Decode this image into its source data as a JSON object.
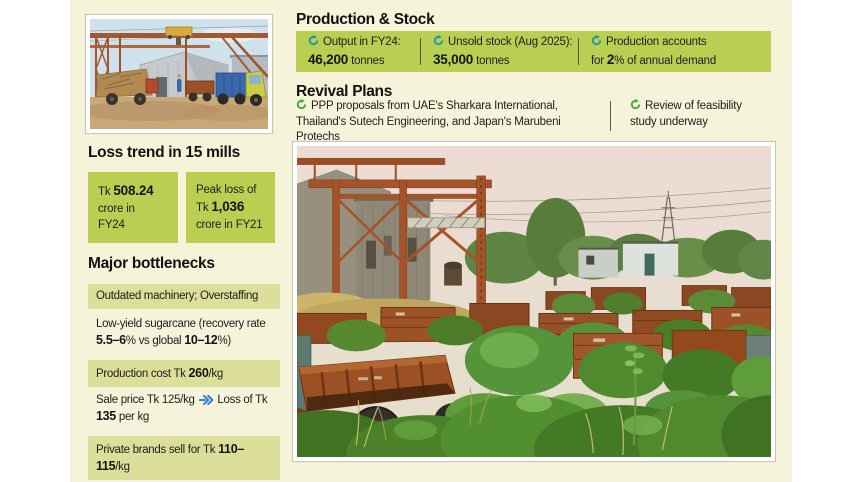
{
  "colors": {
    "panel_bg": "#f5f3da",
    "green_strong": "#b9cf52",
    "green_light": "#dcdf99",
    "icon_teal": "#2196a7",
    "icon_green": "#4aa53c",
    "arrow_blue": "#2e7fd8",
    "text": "#20201e"
  },
  "photos": {
    "mill_alt": "Sugar mill yard with steel gantry and cane trucks",
    "wagons_alt": "Abandoned rusted wagons overgrown with vines at closed sugar mill"
  },
  "production_stock": {
    "title": "Production & Stock",
    "stats": [
      {
        "icon": "cycle-arrow-icon",
        "label": "Output in FY24:",
        "value": "46,200",
        "unit": " tonnes"
      },
      {
        "icon": "cycle-arrow-icon",
        "label": "Unsold stock (Aug 2025):",
        "value": "35,000",
        "unit": " tonnes"
      },
      {
        "icon": "cycle-arrow-icon",
        "line1": "Production accounts",
        "pre": "for ",
        "value": "2",
        "post": "% of annual demand"
      }
    ]
  },
  "revival": {
    "title": "Revival Plans",
    "left_icon": "cycle-arrow-icon",
    "left_text": "PPP proposals from UAE's Sharkara International, Thailand's Sutech Engineering, and Japan's Marubeni Protechs",
    "right_icon": "cycle-arrow-icon",
    "right_text": "Review of feasibility study underway"
  },
  "loss_trend": {
    "title": "Loss trend in 15 mills",
    "boxes": [
      {
        "pre": "Tk ",
        "value": "508.24",
        "line2": "crore in",
        "line3": "FY24"
      },
      {
        "line1": "Peak loss of",
        "pre": "Tk ",
        "value": "1,036",
        "line3": "crore in FY21"
      }
    ]
  },
  "bottlenecks": {
    "title": "Major bottlenecks",
    "rows": [
      {
        "highlight": true,
        "segments": [
          {
            "t": "Outdated machinery; Overstaffing"
          }
        ]
      },
      {
        "highlight": false,
        "segments": [
          {
            "t": "Low-yield sugarcane (recovery rate "
          },
          {
            "t": "5.5–6",
            "b": true
          },
          {
            "t": "% vs global "
          },
          {
            "t": "10–12",
            "b": true
          },
          {
            "t": "%)"
          }
        ]
      },
      {
        "highlight": true,
        "segments": [
          {
            "t": "Production cost Tk "
          },
          {
            "t": "260",
            "b": true
          },
          {
            "t": "/kg"
          }
        ]
      },
      {
        "highlight": false,
        "segments": [
          {
            "t": "Sale price Tk 125/kg "
          },
          {
            "arrow": true
          },
          {
            "t": " Loss of Tk "
          },
          {
            "t": "135",
            "b": true
          },
          {
            "t": " per kg"
          }
        ]
      },
      {
        "highlight": true,
        "segments": [
          {
            "t": "Private brands sell for Tk "
          },
          {
            "t": "110–115",
            "b": true
          },
          {
            "t": "/kg"
          }
        ]
      }
    ]
  }
}
